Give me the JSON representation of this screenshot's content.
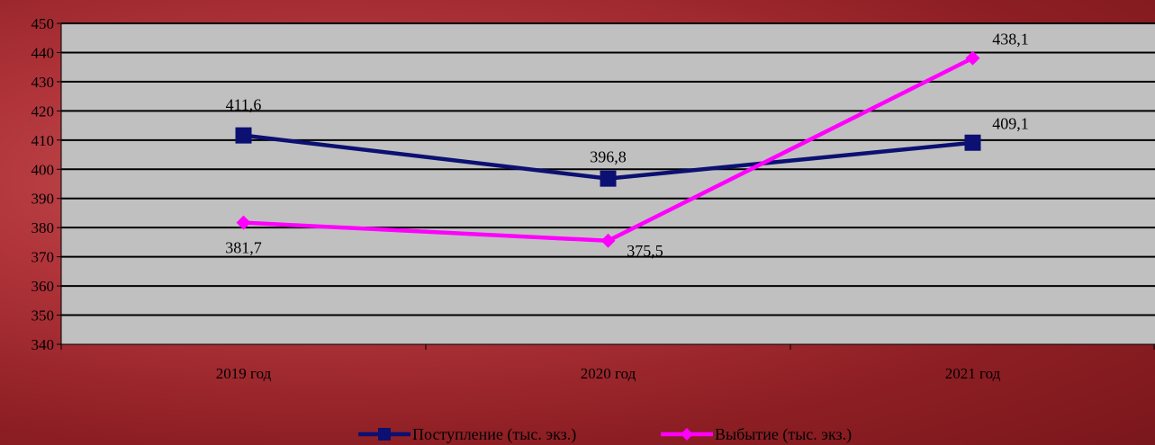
{
  "chart_data": {
    "type": "line",
    "categories": [
      "2019 год",
      "2020 год",
      "2021 год"
    ],
    "series": [
      {
        "name": "Поступление (тыс. экз.)",
        "values": [
          411.6,
          396.8,
          409.1
        ],
        "labels": [
          "411,6",
          "396,8",
          "409,1"
        ],
        "color": "#0b1072",
        "marker": "square"
      },
      {
        "name": "Выбытие (тыс. экз.)",
        "values": [
          381.7,
          375.5,
          438.1
        ],
        "labels": [
          "381,7",
          "375,5",
          "438,1"
        ],
        "color": "#ff00ff",
        "marker": "diamond"
      }
    ],
    "ylim": [
      340,
      450
    ],
    "yticks": [
      340,
      350,
      360,
      370,
      380,
      390,
      400,
      410,
      420,
      430,
      440,
      450
    ],
    "grid": true,
    "legend": "bottom",
    "plot_background": "#c0c0c0"
  }
}
